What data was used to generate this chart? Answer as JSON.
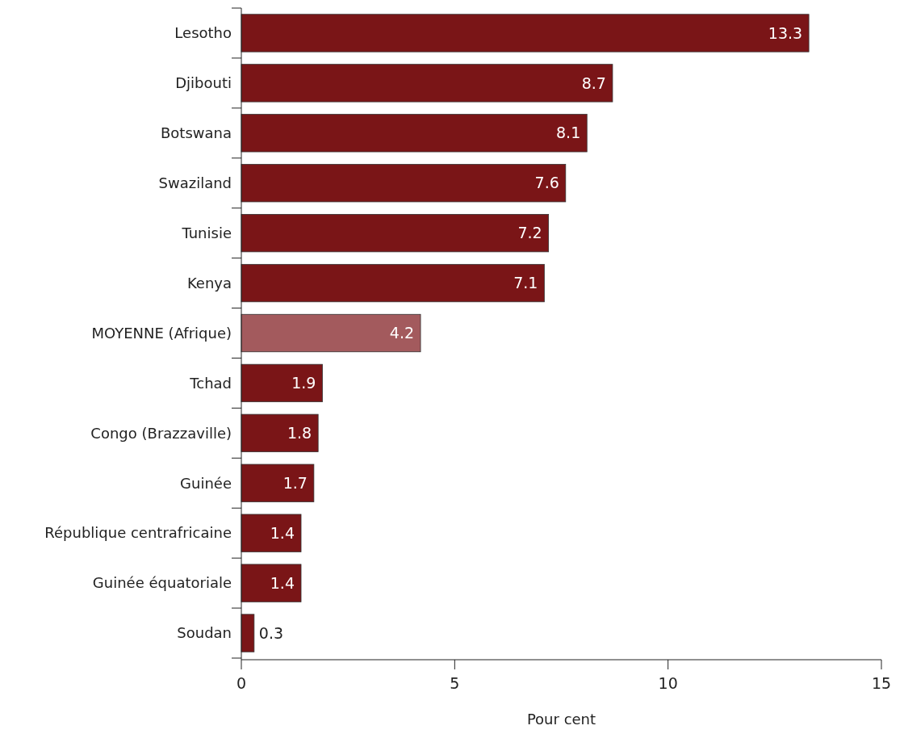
{
  "chart_data": {
    "type": "bar",
    "orientation": "horizontal",
    "xlabel": "Pour cent",
    "categories": [
      "Lesotho",
      "Djibouti",
      "Botswana",
      "Swaziland",
      "Tunisie",
      "Kenya",
      "MOYENNE (Afrique)",
      "Tchad",
      "Congo (Brazzaville)",
      "Guinée",
      "République centrafricaine",
      "Guinée équatoriale",
      "Soudan"
    ],
    "values": [
      13.3,
      8.7,
      8.1,
      7.6,
      7.2,
      7.1,
      4.2,
      1.9,
      1.8,
      1.7,
      1.4,
      1.4,
      0.3
    ],
    "colors": [
      "#7a1517",
      "#7a1517",
      "#7a1517",
      "#7a1517",
      "#7a1517",
      "#7a1517",
      "#a35a5d",
      "#7a1517",
      "#7a1517",
      "#7a1517",
      "#7a1517",
      "#7a1517",
      "#7a1517"
    ],
    "xlim": [
      0,
      15
    ],
    "xticks": [
      0,
      5,
      10,
      15
    ],
    "data_labels": true
  }
}
